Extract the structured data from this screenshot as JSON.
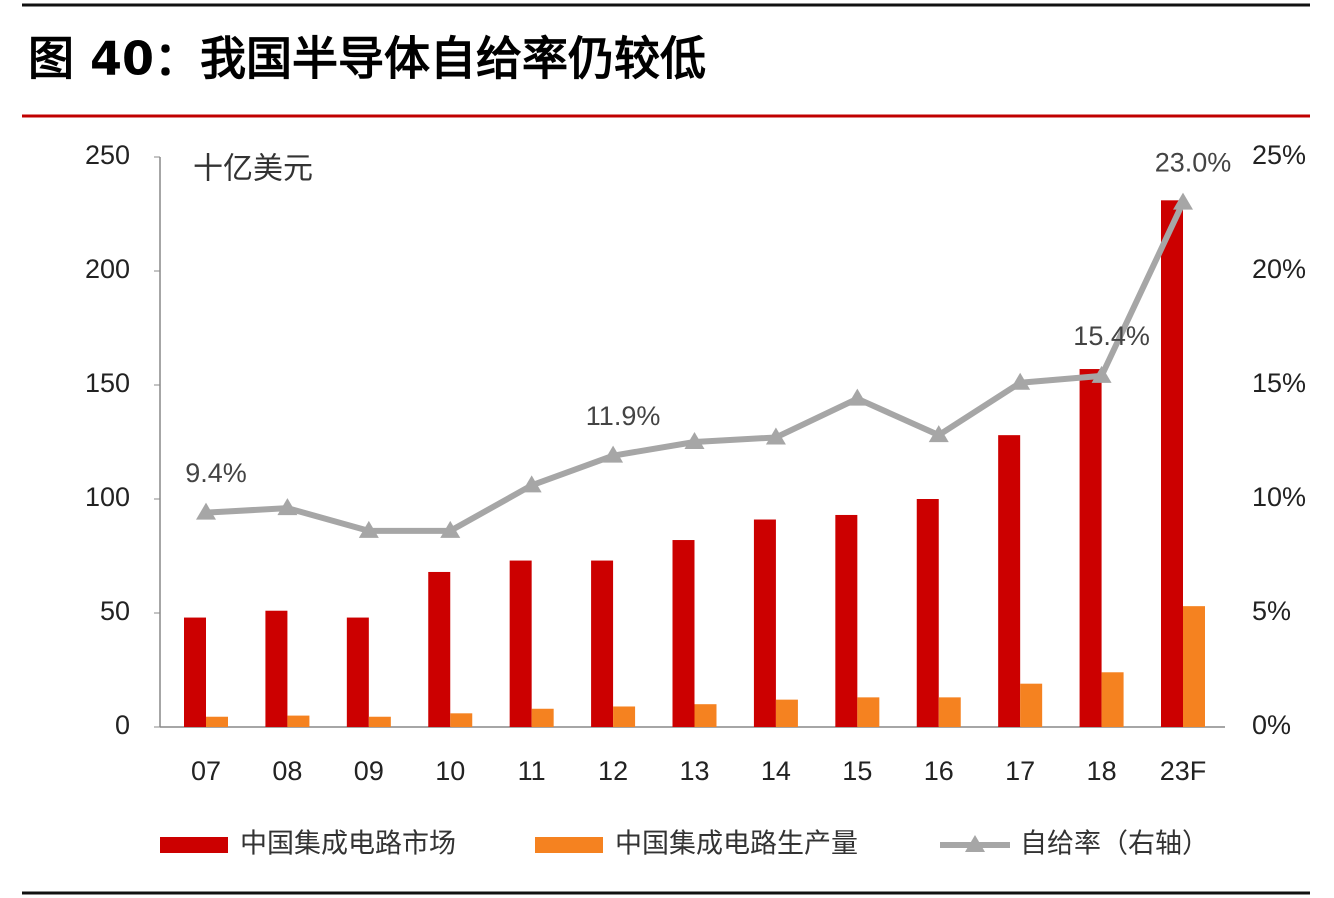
{
  "chart_data": {
    "type": "bar-line",
    "title": "图 40：我国半导体自给率仍较低",
    "unit_label": "十亿美元",
    "categories": [
      "07",
      "08",
      "09",
      "10",
      "11",
      "12",
      "13",
      "14",
      "15",
      "16",
      "17",
      "18",
      "23F"
    ],
    "series": [
      {
        "name": "中国集成电路市场",
        "color": "#cc0000",
        "type": "bar",
        "values": [
          48,
          51,
          48,
          68,
          73,
          73,
          82,
          91,
          93,
          100,
          128,
          157,
          231
        ]
      },
      {
        "name": "中国集成电路生产量",
        "color": "#f58220",
        "type": "bar",
        "values": [
          4.5,
          5,
          4.5,
          6,
          8,
          9,
          10,
          12,
          13,
          13,
          19,
          24,
          53
        ]
      },
      {
        "name": "自给率（右轴）",
        "color": "#a6a6a6",
        "type": "line",
        "axis": "y2",
        "values": [
          9.4,
          9.6,
          8.6,
          8.6,
          10.6,
          11.9,
          12.5,
          12.7,
          14.4,
          12.8,
          15.1,
          15.4,
          23.0
        ],
        "value_labels": [
          "9.4%",
          null,
          null,
          null,
          null,
          "11.9%",
          null,
          null,
          null,
          null,
          null,
          "15.4%",
          "23.0%"
        ]
      }
    ],
    "ylim": [
      0,
      250
    ],
    "yticks": [
      0,
      50,
      100,
      150,
      200,
      250
    ],
    "y2lim": [
      0,
      25
    ],
    "y2ticks": [
      {
        "value": 0,
        "label": "0%"
      },
      {
        "value": 5,
        "label": "5%"
      },
      {
        "value": 10,
        "label": "10%"
      },
      {
        "value": 15,
        "label": "15%"
      },
      {
        "value": 20,
        "label": "20%"
      },
      {
        "value": 25,
        "label": "25%"
      }
    ],
    "legend": "bottom"
  }
}
